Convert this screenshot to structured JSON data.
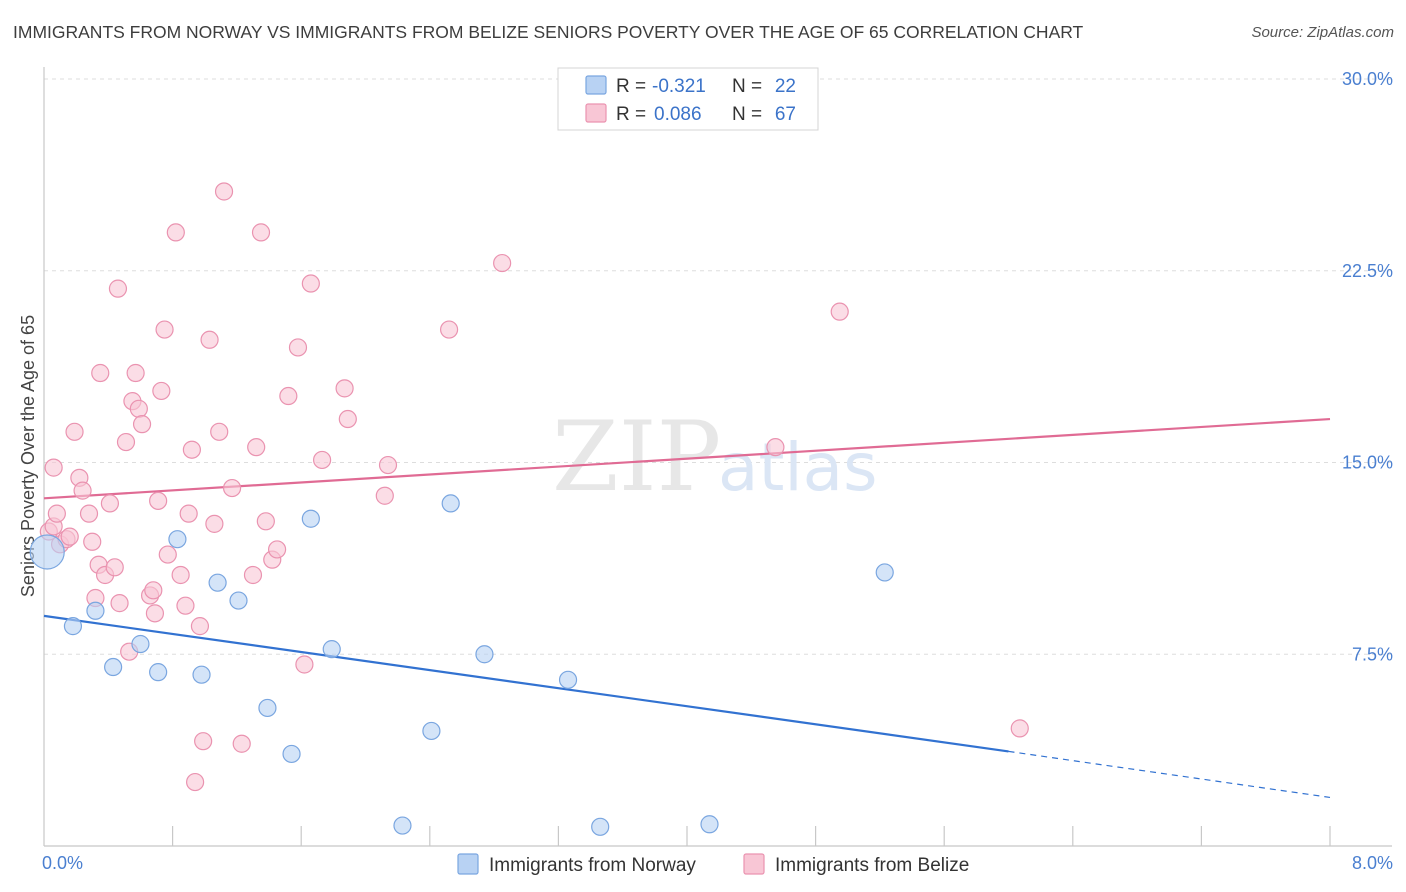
{
  "header": {
    "title": "IMMIGRANTS FROM NORWAY VS IMMIGRANTS FROM BELIZE SENIORS POVERTY OVER THE AGE OF 65 CORRELATION CHART",
    "source": "Source: ZipAtlas.com"
  },
  "watermark": {
    "zip": "ZIP",
    "atlas": "atlas"
  },
  "legend": {
    "r_label": "R =",
    "n_label": "N =",
    "norway": {
      "r": "-0.321",
      "n": "22"
    },
    "belize": {
      "r": "0.086",
      "n": "67"
    }
  },
  "colors": {
    "norway_fill": "#b8d2f3",
    "norway_stroke": "#7aa6e0",
    "norway_line": "#3272d1",
    "belize_fill": "#f8c6d5",
    "belize_stroke": "#ea93b0",
    "belize_line": "#e06b94",
    "tick_label": "#4a7fd0",
    "grid": "#dddddd"
  },
  "chart_data": {
    "type": "scatter",
    "title": "IMMIGRANTS FROM NORWAY VS IMMIGRANTS FROM BELIZE SENIORS POVERTY OVER THE AGE OF 65 CORRELATION CHART",
    "xlabel": "",
    "ylabel": "Seniors Poverty Over the Age of 65",
    "xlim": [
      0,
      8
    ],
    "ylim": [
      0,
      30
    ],
    "x_tick_labels": [
      "0.0%",
      "8.0%"
    ],
    "y_ticks": [
      7.5,
      15.0,
      22.5,
      30.0
    ],
    "y_tick_labels": [
      "7.5%",
      "15.0%",
      "22.5%",
      "30.0%"
    ],
    "grid": "horizontal dashed",
    "legend_placement": "top-center",
    "series": [
      {
        "name": "Immigrants from Norway",
        "r": -0.321,
        "n": 22,
        "points": [
          [
            0.02,
            11.5
          ],
          [
            0.18,
            8.6
          ],
          [
            0.32,
            9.2
          ],
          [
            0.43,
            7.0
          ],
          [
            0.6,
            7.9
          ],
          [
            0.71,
            6.8
          ],
          [
            0.83,
            12.0
          ],
          [
            0.98,
            6.7
          ],
          [
            1.08,
            10.3
          ],
          [
            1.21,
            9.6
          ],
          [
            1.39,
            5.4
          ],
          [
            1.54,
            3.6
          ],
          [
            1.66,
            12.8
          ],
          [
            1.79,
            7.7
          ],
          [
            2.23,
            0.8
          ],
          [
            2.41,
            4.5
          ],
          [
            2.53,
            13.4
          ],
          [
            2.74,
            7.5
          ],
          [
            3.26,
            6.5
          ],
          [
            3.46,
            0.75
          ],
          [
            4.14,
            0.85
          ],
          [
            5.23,
            10.7
          ]
        ],
        "trend": {
          "x": [
            0.0,
            6.0
          ],
          "y": [
            9.0,
            3.7
          ],
          "dashed_extension": {
            "x": [
              6.0,
              8.0
            ],
            "y": [
              3.7,
              1.9
            ]
          }
        }
      },
      {
        "name": "Immigrants from Belize",
        "r": 0.086,
        "n": 67,
        "points": [
          [
            0.03,
            12.3
          ],
          [
            0.06,
            14.8
          ],
          [
            0.06,
            12.5
          ],
          [
            0.08,
            13.0
          ],
          [
            0.1,
            11.8
          ],
          [
            0.14,
            12.0
          ],
          [
            0.16,
            12.1
          ],
          [
            0.19,
            16.2
          ],
          [
            0.22,
            14.4
          ],
          [
            0.24,
            13.9
          ],
          [
            0.28,
            13.0
          ],
          [
            0.3,
            11.9
          ],
          [
            0.32,
            9.7
          ],
          [
            0.34,
            11.0
          ],
          [
            0.35,
            18.5
          ],
          [
            0.38,
            10.6
          ],
          [
            0.41,
            13.4
          ],
          [
            0.44,
            10.9
          ],
          [
            0.46,
            21.8
          ],
          [
            0.47,
            9.5
          ],
          [
            0.51,
            15.8
          ],
          [
            0.53,
            7.6
          ],
          [
            0.55,
            17.4
          ],
          [
            0.57,
            18.5
          ],
          [
            0.59,
            17.1
          ],
          [
            0.61,
            16.5
          ],
          [
            0.66,
            9.8
          ],
          [
            0.68,
            10.0
          ],
          [
            0.69,
            9.1
          ],
          [
            0.71,
            13.5
          ],
          [
            0.73,
            17.8
          ],
          [
            0.75,
            20.2
          ],
          [
            0.77,
            11.4
          ],
          [
            0.82,
            24.0
          ],
          [
            0.85,
            10.6
          ],
          [
            0.88,
            9.4
          ],
          [
            0.9,
            13.0
          ],
          [
            0.92,
            15.5
          ],
          [
            0.94,
            2.5
          ],
          [
            0.97,
            8.6
          ],
          [
            0.99,
            4.1
          ],
          [
            1.03,
            19.8
          ],
          [
            1.06,
            12.6
          ],
          [
            1.09,
            16.2
          ],
          [
            1.12,
            25.6
          ],
          [
            1.17,
            14.0
          ],
          [
            1.23,
            4.0
          ],
          [
            1.3,
            10.6
          ],
          [
            1.32,
            15.6
          ],
          [
            1.35,
            24.0
          ],
          [
            1.38,
            12.7
          ],
          [
            1.42,
            11.2
          ],
          [
            1.45,
            11.6
          ],
          [
            1.52,
            17.6
          ],
          [
            1.58,
            19.5
          ],
          [
            1.62,
            7.1
          ],
          [
            1.66,
            22.0
          ],
          [
            1.73,
            15.1
          ],
          [
            1.87,
            17.9
          ],
          [
            1.89,
            16.7
          ],
          [
            2.12,
            13.7
          ],
          [
            2.14,
            14.9
          ],
          [
            2.52,
            20.2
          ],
          [
            2.85,
            22.8
          ],
          [
            4.55,
            15.6
          ],
          [
            4.95,
            20.9
          ],
          [
            6.07,
            4.6
          ]
        ],
        "trend": {
          "x": [
            0.0,
            8.0
          ],
          "y": [
            13.6,
            16.7
          ]
        }
      }
    ]
  }
}
